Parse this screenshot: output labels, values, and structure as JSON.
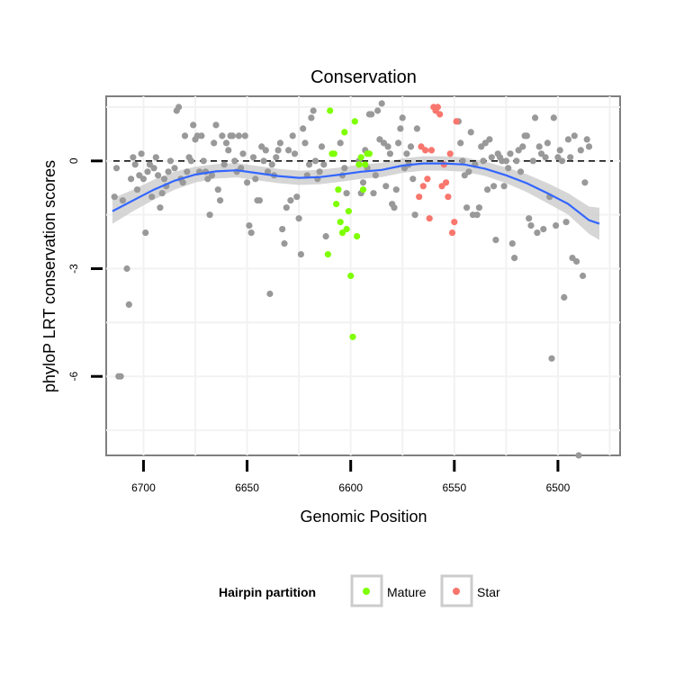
{
  "chart_data": {
    "type": "scatter",
    "title": "Conservation",
    "xlabel": "Genomic Position",
    "ylabel": "phyloP LRT conservation scores",
    "x_reversed": true,
    "xlim": [
      6718,
      6470
    ],
    "ylim": [
      -8.2,
      1.8
    ],
    "x_ticks": [
      6700,
      6650,
      6600,
      6550,
      6500
    ],
    "y_ticks": [
      0,
      -3,
      -6
    ],
    "x_tick_labels": [
      "6700",
      "6650",
      "6600",
      "6550",
      "6500"
    ],
    "y_tick_labels": [
      "0",
      "-3",
      "-6"
    ],
    "hline": 0,
    "grid": true,
    "legend": {
      "title": "Hairpin partition",
      "position": "bottom",
      "entries": [
        {
          "label": "Mature",
          "color": "#7FFF00"
        },
        {
          "label": "Star",
          "color": "#F8766D"
        }
      ]
    },
    "colors": {
      "other": "#999999",
      "mature": "#7FFF00",
      "star": "#F8766D",
      "smooth": "#3366FF",
      "ribbon": "#CCCCCC"
    },
    "series": [
      {
        "name": "",
        "color": "#999999",
        "points": [
          [
            6714,
            -1.0
          ],
          [
            6713,
            -0.2
          ],
          [
            6712,
            -6.0
          ],
          [
            6711,
            -6.0
          ],
          [
            6710,
            -1.1
          ],
          [
            6708,
            -3.0
          ],
          [
            6707,
            -4.0
          ],
          [
            6706,
            -0.5
          ],
          [
            6705,
            0.1
          ],
          [
            6704,
            -0.1
          ],
          [
            6703,
            -0.8
          ],
          [
            6702,
            -0.4
          ],
          [
            6701,
            0.2
          ],
          [
            6700,
            -0.5
          ],
          [
            6699,
            -2.0
          ],
          [
            6698,
            -0.3
          ],
          [
            6697,
            -0.1
          ],
          [
            6696,
            -1.0
          ],
          [
            6695,
            -0.2
          ],
          [
            6694,
            0.1
          ],
          [
            6693,
            -0.4
          ],
          [
            6692,
            -1.3
          ],
          [
            6691,
            -0.9
          ],
          [
            6690,
            -0.5
          ],
          [
            6689,
            -0.7
          ],
          [
            6688,
            -0.3
          ],
          [
            6687,
            0.0
          ],
          [
            6685,
            -0.2
          ],
          [
            6684,
            1.4
          ],
          [
            6683,
            1.5
          ],
          [
            6682,
            -0.5
          ],
          [
            6681,
            -0.6
          ],
          [
            6680,
            0.7
          ],
          [
            6679,
            -0.3
          ],
          [
            6678,
            0.1
          ],
          [
            6677,
            0.0
          ],
          [
            6676,
            1.0
          ],
          [
            6675,
            0.6
          ],
          [
            6674,
            0.7
          ],
          [
            6673,
            -0.3
          ],
          [
            6672,
            0.7
          ],
          [
            6671,
            0.0
          ],
          [
            6670,
            -0.3
          ],
          [
            6669,
            -0.5
          ],
          [
            6668,
            -1.5
          ],
          [
            6667,
            -0.4
          ],
          [
            6666,
            0.5
          ],
          [
            6665,
            1.0
          ],
          [
            6664,
            -0.8
          ],
          [
            6663,
            -1.1
          ],
          [
            6662,
            0.7
          ],
          [
            6661,
            -0.1
          ],
          [
            6660,
            0.5
          ],
          [
            6659,
            0.3
          ],
          [
            6658,
            0.7
          ],
          [
            6657,
            0.7
          ],
          [
            6656,
            0.0
          ],
          [
            6655,
            -0.3
          ],
          [
            6654,
            0.7
          ],
          [
            6653,
            -0.2
          ],
          [
            6652,
            0.2
          ],
          [
            6651,
            0.7
          ],
          [
            6650,
            -0.6
          ],
          [
            6649,
            -1.8
          ],
          [
            6648,
            -2.0
          ],
          [
            6647,
            0.1
          ],
          [
            6646,
            -0.5
          ],
          [
            6645,
            -1.1
          ],
          [
            6644,
            -1.1
          ],
          [
            6643,
            0.4
          ],
          [
            6642,
            0.0
          ],
          [
            6641,
            0.3
          ],
          [
            6640,
            -0.3
          ],
          [
            6639,
            -3.7
          ],
          [
            6638,
            -0.1
          ],
          [
            6637,
            -0.4
          ],
          [
            6636,
            0.1
          ],
          [
            6635,
            0.3
          ],
          [
            6634,
            0.5
          ],
          [
            6633,
            -1.9
          ],
          [
            6632,
            -2.3
          ],
          [
            6631,
            -1.3
          ],
          [
            6630,
            0.3
          ],
          [
            6629,
            -1.1
          ],
          [
            6628,
            0.7
          ],
          [
            6627,
            0.2
          ],
          [
            6626,
            -1.0
          ],
          [
            6625,
            -1.6
          ],
          [
            6624,
            -2.6
          ],
          [
            6623,
            0.9
          ],
          [
            6622,
            0.5
          ],
          [
            6621,
            -0.4
          ],
          [
            6620,
            -0.1
          ],
          [
            6619,
            1.2
          ],
          [
            6618,
            1.4
          ],
          [
            6617,
            0.0
          ],
          [
            6616,
            -0.5
          ],
          [
            6615,
            -0.3
          ],
          [
            6614,
            0.4
          ],
          [
            6613,
            -0.1
          ],
          [
            6612,
            -2.1
          ],
          [
            6605,
            0.5
          ],
          [
            6604,
            -0.4
          ],
          [
            6603,
            -0.2
          ],
          [
            6602,
            -0.9
          ],
          [
            6596,
            0.0
          ],
          [
            6595,
            -0.9
          ],
          [
            6594,
            -0.6
          ],
          [
            6593,
            0.3
          ],
          [
            6592,
            -0.2
          ],
          [
            6591,
            1.3
          ],
          [
            6590,
            1.3
          ],
          [
            6589,
            -0.9
          ],
          [
            6588,
            -0.4
          ],
          [
            6587,
            1.4
          ],
          [
            6586,
            0.6
          ],
          [
            6585,
            1.6
          ],
          [
            6584,
            0.5
          ],
          [
            6583,
            -0.7
          ],
          [
            6582,
            0.4
          ],
          [
            6581,
            0.2
          ],
          [
            6580,
            -1.2
          ],
          [
            6579,
            -1.3
          ],
          [
            6578,
            -0.8
          ],
          [
            6577,
            0.5
          ],
          [
            6576,
            0.9
          ],
          [
            6575,
            1.2
          ],
          [
            6574,
            -0.2
          ],
          [
            6573,
            0.2
          ],
          [
            6572,
            -0.1
          ],
          [
            6571,
            0.4
          ],
          [
            6570,
            -0.5
          ],
          [
            6569,
            -1.5
          ],
          [
            6568,
            0.9
          ],
          [
            6548,
            1.1
          ],
          [
            6547,
            0.5
          ],
          [
            6546,
            0.0
          ],
          [
            6545,
            -0.4
          ],
          [
            6544,
            -1.3
          ],
          [
            6543,
            -0.3
          ],
          [
            6542,
            0.8
          ],
          [
            6541,
            -1.5
          ],
          [
            6540,
            -0.1
          ],
          [
            6539,
            -1.5
          ],
          [
            6538,
            -1.3
          ],
          [
            6537,
            0.4
          ],
          [
            6536,
            0.0
          ],
          [
            6535,
            0.5
          ],
          [
            6534,
            -0.8
          ],
          [
            6533,
            0.6
          ],
          [
            6532,
            0.1
          ],
          [
            6531,
            -0.7
          ],
          [
            6530,
            -2.2
          ],
          [
            6529,
            0.2
          ],
          [
            6528,
            0.1
          ],
          [
            6527,
            0.0
          ],
          [
            6526,
            -0.7
          ],
          [
            6525,
            0.0
          ],
          [
            6524,
            -0.2
          ],
          [
            6523,
            0.2
          ],
          [
            6522,
            -2.3
          ],
          [
            6521,
            -2.7
          ],
          [
            6520,
            0.0
          ],
          [
            6519,
            0.3
          ],
          [
            6518,
            -0.3
          ],
          [
            6517,
            0.4
          ],
          [
            6516,
            0.7
          ],
          [
            6515,
            0.7
          ],
          [
            6514,
            -1.6
          ],
          [
            6513,
            -1.8
          ],
          [
            6512,
            0.0
          ],
          [
            6511,
            1.2
          ],
          [
            6510,
            -2.0
          ],
          [
            6509,
            0.4
          ],
          [
            6508,
            0.2
          ],
          [
            6507,
            -1.9
          ],
          [
            6506,
            0.1
          ],
          [
            6505,
            0.5
          ],
          [
            6504,
            -1.0
          ],
          [
            6503,
            -5.5
          ],
          [
            6502,
            1.2
          ],
          [
            6501,
            -1.8
          ],
          [
            6500,
            0.1
          ],
          [
            6499,
            0.3
          ],
          [
            6498,
            0.0
          ],
          [
            6497,
            -3.8
          ],
          [
            6496,
            -1.7
          ],
          [
            6495,
            0.6
          ],
          [
            6494,
            0.1
          ],
          [
            6493,
            -2.7
          ],
          [
            6492,
            0.7
          ],
          [
            6491,
            -2.8
          ],
          [
            6490,
            -8.2
          ],
          [
            6489,
            0.3
          ],
          [
            6488,
            -3.2
          ],
          [
            6487,
            -0.6
          ],
          [
            6486,
            0.6
          ],
          [
            6485,
            0.4
          ]
        ]
      },
      {
        "name": "Mature",
        "color": "#7FFF00",
        "points": [
          [
            6611,
            -2.6
          ],
          [
            6610,
            1.4
          ],
          [
            6609,
            0.2
          ],
          [
            6608,
            0.2
          ],
          [
            6607,
            -1.2
          ],
          [
            6606,
            -0.8
          ],
          [
            6605,
            -1.7
          ],
          [
            6604,
            -2.0
          ],
          [
            6603,
            0.8
          ],
          [
            6602,
            -1.9
          ],
          [
            6601,
            -1.4
          ],
          [
            6600,
            -3.2
          ],
          [
            6599,
            -4.9
          ],
          [
            6598,
            1.1
          ],
          [
            6597,
            -2.1
          ],
          [
            6596,
            -0.1
          ],
          [
            6595,
            0.1
          ],
          [
            6594,
            -0.8
          ],
          [
            6593,
            -0.1
          ],
          [
            6592,
            0.2
          ],
          [
            6591,
            0.2
          ]
        ]
      },
      {
        "name": "Star",
        "color": "#F8766D",
        "points": [
          [
            6567,
            -1.0
          ],
          [
            6566,
            0.4
          ],
          [
            6565,
            -0.7
          ],
          [
            6564,
            0.3
          ],
          [
            6563,
            -0.5
          ],
          [
            6562,
            -1.6
          ],
          [
            6561,
            0.3
          ],
          [
            6560,
            1.5
          ],
          [
            6559,
            1.4
          ],
          [
            6558,
            1.5
          ],
          [
            6557,
            1.3
          ],
          [
            6556,
            -0.7
          ],
          [
            6555,
            -0.1
          ],
          [
            6554,
            -0.6
          ],
          [
            6553,
            -1.0
          ],
          [
            6552,
            0.2
          ],
          [
            6551,
            -2.0
          ],
          [
            6550,
            -1.7
          ],
          [
            6549,
            1.1
          ]
        ]
      }
    ],
    "smooth": [
      [
        6715,
        -1.4
      ],
      [
        6705,
        -1.1
      ],
      [
        6695,
        -0.8
      ],
      [
        6685,
        -0.55
      ],
      [
        6675,
        -0.38
      ],
      [
        6665,
        -0.29
      ],
      [
        6655,
        -0.26
      ],
      [
        6645,
        -0.34
      ],
      [
        6635,
        -0.42
      ],
      [
        6625,
        -0.47
      ],
      [
        6615,
        -0.45
      ],
      [
        6605,
        -0.38
      ],
      [
        6595,
        -0.3
      ],
      [
        6585,
        -0.25
      ],
      [
        6575,
        -0.13
      ],
      [
        6565,
        -0.07
      ],
      [
        6555,
        -0.07
      ],
      [
        6545,
        -0.1
      ],
      [
        6535,
        -0.22
      ],
      [
        6525,
        -0.4
      ],
      [
        6515,
        -0.62
      ],
      [
        6505,
        -0.9
      ],
      [
        6495,
        -1.2
      ],
      [
        6485,
        -1.65
      ],
      [
        6480,
        -1.75
      ]
    ],
    "smooth_band": [
      0.35,
      0.3,
      0.28,
      0.25,
      0.22,
      0.2,
      0.2,
      0.2,
      0.2,
      0.2,
      0.2,
      0.2,
      0.2,
      0.2,
      0.2,
      0.2,
      0.2,
      0.2,
      0.2,
      0.22,
      0.25,
      0.28,
      0.3,
      0.38,
      0.45
    ]
  }
}
